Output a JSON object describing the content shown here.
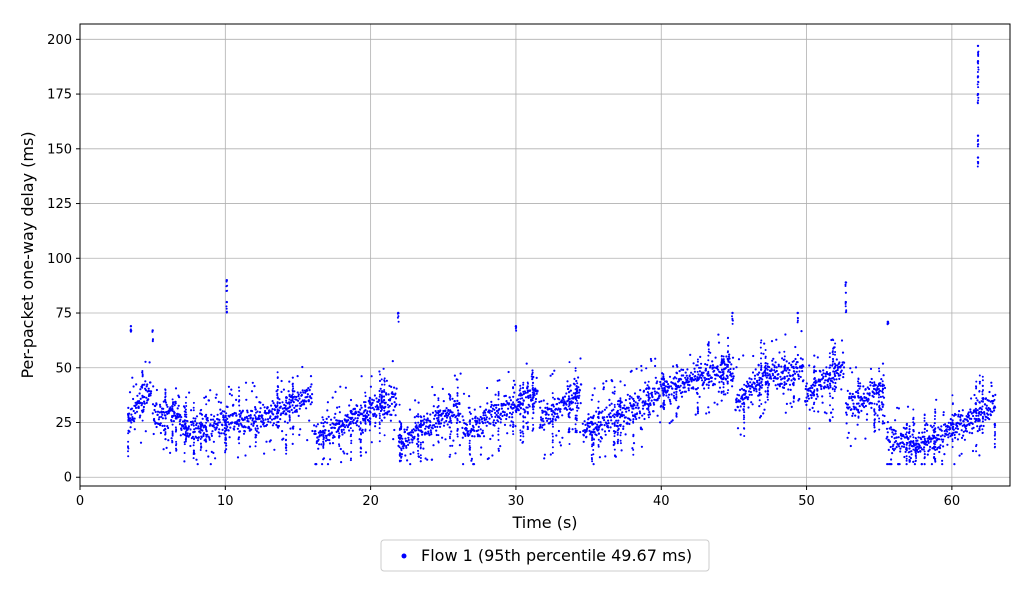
{
  "chart_data": {
    "type": "scatter",
    "xlabel": "Time (s)",
    "ylabel": "Per-packet one-way delay (ms)",
    "xlim": [
      0,
      64
    ],
    "ylim": [
      -4,
      207
    ],
    "xticks": [
      0,
      10,
      20,
      30,
      40,
      50,
      60
    ],
    "yticks": [
      0,
      25,
      50,
      75,
      100,
      125,
      150,
      175,
      200
    ],
    "grid": true,
    "legend_position": "bottom-center",
    "series": [
      {
        "name": "Flow 1 (95th percentile 49.67 ms)",
        "color": "#0000ff",
        "trend_points": [
          [
            3.3,
            25
          ],
          [
            4.0,
            33
          ],
          [
            4.9,
            40
          ],
          [
            5.0,
            28
          ],
          [
            6.8,
            31
          ],
          [
            7.0,
            22
          ],
          [
            12.0,
            26
          ],
          [
            16.0,
            38
          ],
          [
            16.1,
            18
          ],
          [
            21.8,
            37
          ],
          [
            21.9,
            15
          ],
          [
            26.2,
            32
          ],
          [
            26.3,
            21
          ],
          [
            31.5,
            39
          ],
          [
            31.6,
            26
          ],
          [
            34.5,
            40
          ],
          [
            34.6,
            22
          ],
          [
            37.0,
            28
          ],
          [
            39.0,
            35
          ],
          [
            41.0,
            43
          ],
          [
            45.0,
            50
          ],
          [
            45.1,
            35
          ],
          [
            47.0,
            46
          ],
          [
            49.8,
            50
          ],
          [
            49.9,
            37
          ],
          [
            52.6,
            50
          ],
          [
            52.7,
            33
          ],
          [
            55.4,
            40
          ],
          [
            55.5,
            18
          ],
          [
            58.0,
            15
          ],
          [
            60.0,
            22
          ],
          [
            63.0,
            33
          ]
        ],
        "outliers": [
          [
            3.5,
            69
          ],
          [
            5.0,
            67
          ],
          [
            10.1,
            90
          ],
          [
            10.1,
            80
          ],
          [
            21.9,
            75
          ],
          [
            30.0,
            69
          ],
          [
            44.9,
            75
          ],
          [
            49.4,
            75
          ],
          [
            52.7,
            89
          ],
          [
            52.7,
            80
          ],
          [
            55.6,
            71
          ],
          [
            61.8,
            197
          ],
          [
            61.8,
            190
          ],
          [
            61.8,
            183
          ],
          [
            61.8,
            175
          ],
          [
            61.8,
            156
          ],
          [
            61.8,
            146
          ]
        ]
      }
    ]
  }
}
